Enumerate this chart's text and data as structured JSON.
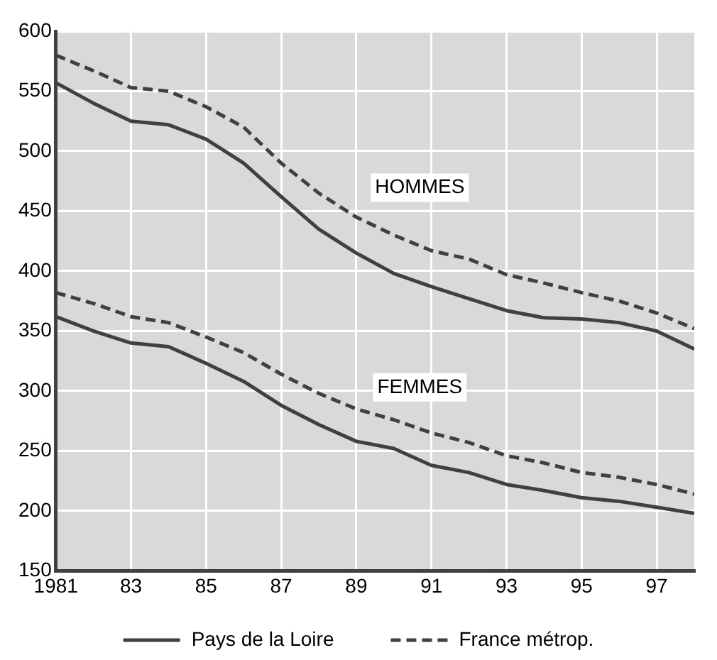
{
  "chart_data": {
    "type": "line",
    "x": [
      1981,
      1982,
      1983,
      1984,
      1985,
      1986,
      1987,
      1988,
      1989,
      1990,
      1991,
      1992,
      1993,
      1994,
      1995,
      1996,
      1997,
      1998
    ],
    "series": [
      {
        "name": "Pays de la Loire",
        "color": "#404040",
        "line_style": "solid",
        "values": [
          557,
          540,
          525,
          522,
          510,
          490,
          462,
          435,
          415,
          398,
          387,
          377,
          367,
          361,
          360,
          357,
          350,
          335
        ]
      },
      {
        "name": "France métrop.",
        "color": "#404040",
        "line_style": "dashed",
        "values": [
          580,
          567,
          553,
          550,
          537,
          520,
          490,
          465,
          445,
          430,
          417,
          410,
          397,
          390,
          382,
          375,
          365,
          352
        ]
      },
      {
        "color": "#404040",
        "line_style": "solid",
        "values": [
          362,
          350,
          340,
          337,
          323,
          308,
          288,
          272,
          258,
          252,
          238,
          232,
          222,
          217,
          211,
          208,
          203,
          198
        ]
      },
      {
        "color": "#404040",
        "line_style": "dashed",
        "values": [
          382,
          373,
          362,
          357,
          345,
          332,
          314,
          298,
          285,
          276,
          265,
          257,
          246,
          240,
          232,
          228,
          222,
          214
        ]
      }
    ],
    "xlim": [
      1981,
      1998
    ],
    "xticks": [
      1981,
      {
        "value": 1983,
        "label": "83"
      },
      {
        "value": 1985,
        "label": "85"
      },
      {
        "value": 1987,
        "label": "87"
      },
      {
        "value": 1989,
        "label": "89"
      },
      {
        "value": 1991,
        "label": "91"
      },
      {
        "value": 1993,
        "label": "93"
      },
      {
        "value": 1995,
        "label": "95"
      },
      {
        "value": 1997,
        "label": "97"
      }
    ],
    "ylim": [
      150,
      600
    ],
    "yticks": [
      150,
      200,
      250,
      300,
      350,
      400,
      450,
      500,
      550,
      600
    ],
    "grid": true,
    "marker": "none",
    "legend": "bottom",
    "annotations": [
      "HOMMES",
      "FEMMES"
    ]
  }
}
